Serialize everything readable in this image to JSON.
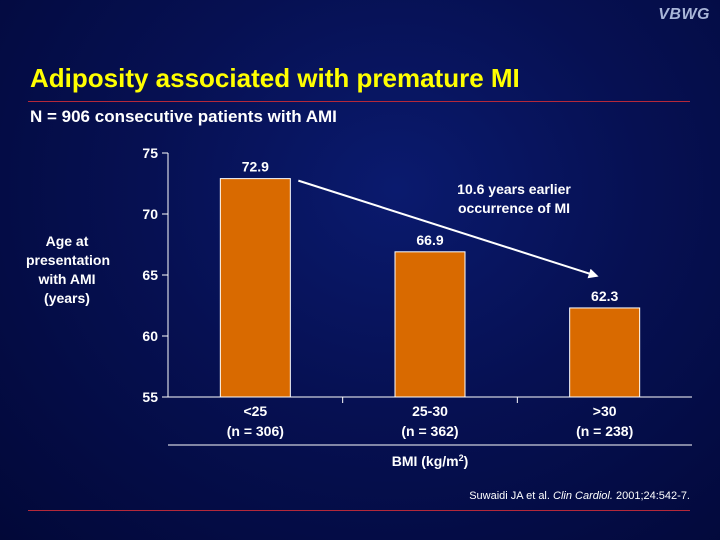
{
  "brand": "VBWG",
  "title": "Adiposity associated with premature MI",
  "subtitle": "N = 906 consecutive patients with AMI",
  "colors": {
    "title": "#ffff00",
    "bar": "#d96a00",
    "rule": "#b5283a",
    "background": "#061052"
  },
  "chart_data": {
    "type": "bar",
    "ylabel_lines": [
      "Age at",
      "presentation",
      "with AMI",
      "(years)"
    ],
    "xlabel": "BMI (kg/m",
    "xlabel_sup": "2",
    "xlabel_close": ")",
    "categories": [
      {
        "line1": "<25",
        "line2": "(n = 306)"
      },
      {
        "line1": "25-30",
        "line2": "(n = 362)"
      },
      {
        "line1": ">30",
        "line2": "(n = 238)"
      }
    ],
    "values": [
      72.9,
      66.9,
      62.3
    ],
    "data_labels": [
      "72.9",
      "66.9",
      "62.3"
    ],
    "ylim": [
      55,
      75
    ],
    "yticks": [
      55,
      60,
      65,
      70,
      75
    ],
    "annotation_lines": [
      "10.6 years earlier",
      "occurrence of MI"
    ],
    "grid": false
  },
  "citation": {
    "authors": "Suwaidi JA et al. ",
    "journal": "Clin Cardiol.",
    "details": " 2001;24:542-7."
  }
}
